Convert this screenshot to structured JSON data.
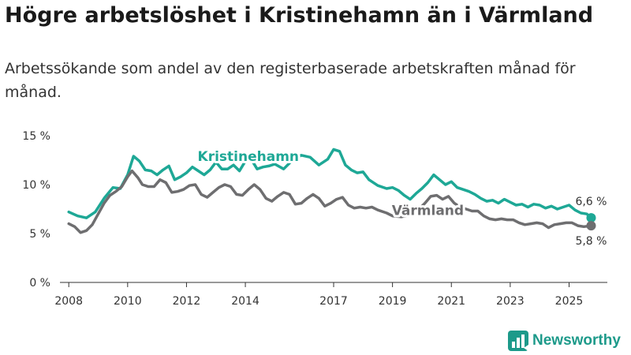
{
  "title": "Högre arbetslöshet i Kristinehamn än i Värmland",
  "subtitle": "Arbetssökande som andel av den registerbaserade arbetskraften månad för månad.",
  "brand": {
    "name": "Newsworthy",
    "icon": "newsworthy-logo-icon",
    "color": "#1d9a8a"
  },
  "chart_data": {
    "type": "line",
    "title": "Högre arbetslöshet i Kristinehamn än i Värmland",
    "xlabel": "",
    "ylabel": "",
    "ylim": [
      0,
      15
    ],
    "xlim": [
      2007.7,
      2026.3
    ],
    "grid": false,
    "y_ticks": [
      0,
      5,
      10,
      15
    ],
    "y_tick_labels": [
      "0 %",
      "5 %",
      "10 %",
      "15 %"
    ],
    "x_ticks": [
      2008,
      2010,
      2012,
      2014,
      2017,
      2019,
      2021,
      2023,
      2025
    ],
    "x_tick_labels": [
      "2008",
      "2010",
      "2012",
      "2014",
      "2017",
      "2019",
      "2021",
      "2023",
      "2025"
    ],
    "series": [
      {
        "name": "Kristinehamn",
        "color": "#1ea896",
        "end_label": "6,6 %",
        "points": [
          [
            2008.0,
            7.2
          ],
          [
            2008.3,
            6.8
          ],
          [
            2008.6,
            6.6
          ],
          [
            2008.9,
            7.2
          ],
          [
            2009.2,
            8.6
          ],
          [
            2009.5,
            9.7
          ],
          [
            2009.75,
            9.6
          ],
          [
            2010.0,
            11.0
          ],
          [
            2010.2,
            12.9
          ],
          [
            2010.4,
            12.4
          ],
          [
            2010.6,
            11.5
          ],
          [
            2010.8,
            11.4
          ],
          [
            2011.0,
            11.0
          ],
          [
            2011.2,
            11.5
          ],
          [
            2011.4,
            11.9
          ],
          [
            2011.6,
            10.5
          ],
          [
            2011.8,
            10.8
          ],
          [
            2012.0,
            11.2
          ],
          [
            2012.2,
            11.8
          ],
          [
            2012.4,
            11.4
          ],
          [
            2012.6,
            11.0
          ],
          [
            2012.8,
            11.5
          ],
          [
            2013.0,
            12.3
          ],
          [
            2013.2,
            11.6
          ],
          [
            2013.4,
            11.6
          ],
          [
            2013.6,
            12.0
          ],
          [
            2013.8,
            11.4
          ],
          [
            2014.0,
            12.4
          ],
          [
            2014.2,
            12.6
          ],
          [
            2014.4,
            11.6
          ],
          [
            2014.6,
            11.8
          ],
          [
            2014.8,
            11.9
          ],
          [
            2015.0,
            12.1
          ],
          [
            2015.3,
            11.6
          ],
          [
            2015.6,
            12.5
          ],
          [
            2015.9,
            13.0
          ],
          [
            2016.2,
            12.8
          ],
          [
            2016.5,
            12.0
          ],
          [
            2016.8,
            12.6
          ],
          [
            2017.0,
            13.6
          ],
          [
            2017.2,
            13.4
          ],
          [
            2017.4,
            12.0
          ],
          [
            2017.6,
            11.5
          ],
          [
            2017.8,
            11.2
          ],
          [
            2018.0,
            11.3
          ],
          [
            2018.2,
            10.5
          ],
          [
            2018.5,
            9.9
          ],
          [
            2018.8,
            9.6
          ],
          [
            2019.0,
            9.7
          ],
          [
            2019.2,
            9.4
          ],
          [
            2019.4,
            8.9
          ],
          [
            2019.6,
            8.5
          ],
          [
            2019.8,
            9.1
          ],
          [
            2020.0,
            9.6
          ],
          [
            2020.2,
            10.2
          ],
          [
            2020.4,
            11.0
          ],
          [
            2020.6,
            10.5
          ],
          [
            2020.8,
            10.0
          ],
          [
            2021.0,
            10.3
          ],
          [
            2021.2,
            9.7
          ],
          [
            2021.4,
            9.5
          ],
          [
            2021.6,
            9.3
          ],
          [
            2021.8,
            9.0
          ],
          [
            2022.0,
            8.6
          ],
          [
            2022.2,
            8.3
          ],
          [
            2022.4,
            8.4
          ],
          [
            2022.6,
            8.1
          ],
          [
            2022.8,
            8.5
          ],
          [
            2023.0,
            8.2
          ],
          [
            2023.2,
            7.9
          ],
          [
            2023.4,
            8.0
          ],
          [
            2023.6,
            7.7
          ],
          [
            2023.8,
            8.0
          ],
          [
            2024.0,
            7.9
          ],
          [
            2024.2,
            7.6
          ],
          [
            2024.4,
            7.8
          ],
          [
            2024.6,
            7.5
          ],
          [
            2024.8,
            7.7
          ],
          [
            2025.0,
            7.9
          ],
          [
            2025.2,
            7.4
          ],
          [
            2025.4,
            7.1
          ],
          [
            2025.6,
            7.0
          ],
          [
            2025.75,
            6.6
          ]
        ]
      },
      {
        "name": "Värmland",
        "color": "#6e6e70",
        "end_label": "5,8 %",
        "points": [
          [
            2008.0,
            6.0
          ],
          [
            2008.2,
            5.7
          ],
          [
            2008.4,
            5.1
          ],
          [
            2008.6,
            5.3
          ],
          [
            2008.8,
            5.9
          ],
          [
            2009.0,
            7.0
          ],
          [
            2009.2,
            8.1
          ],
          [
            2009.4,
            8.9
          ],
          [
            2009.6,
            9.3
          ],
          [
            2009.8,
            9.8
          ],
          [
            2010.0,
            10.8
          ],
          [
            2010.15,
            11.4
          ],
          [
            2010.35,
            10.7
          ],
          [
            2010.5,
            10.0
          ],
          [
            2010.7,
            9.8
          ],
          [
            2010.9,
            9.8
          ],
          [
            2011.1,
            10.5
          ],
          [
            2011.3,
            10.2
          ],
          [
            2011.5,
            9.2
          ],
          [
            2011.7,
            9.3
          ],
          [
            2011.9,
            9.5
          ],
          [
            2012.1,
            9.9
          ],
          [
            2012.3,
            10.0
          ],
          [
            2012.5,
            9.0
          ],
          [
            2012.7,
            8.7
          ],
          [
            2012.9,
            9.2
          ],
          [
            2013.1,
            9.7
          ],
          [
            2013.3,
            10.0
          ],
          [
            2013.5,
            9.8
          ],
          [
            2013.7,
            9.0
          ],
          [
            2013.9,
            8.9
          ],
          [
            2014.1,
            9.5
          ],
          [
            2014.3,
            10.0
          ],
          [
            2014.5,
            9.5
          ],
          [
            2014.7,
            8.6
          ],
          [
            2014.9,
            8.3
          ],
          [
            2015.1,
            8.8
          ],
          [
            2015.3,
            9.2
          ],
          [
            2015.5,
            9.0
          ],
          [
            2015.7,
            8.0
          ],
          [
            2015.9,
            8.1
          ],
          [
            2016.1,
            8.6
          ],
          [
            2016.3,
            9.0
          ],
          [
            2016.5,
            8.6
          ],
          [
            2016.7,
            7.8
          ],
          [
            2016.9,
            8.1
          ],
          [
            2017.1,
            8.5
          ],
          [
            2017.3,
            8.7
          ],
          [
            2017.5,
            7.9
          ],
          [
            2017.7,
            7.6
          ],
          [
            2017.9,
            7.7
          ],
          [
            2018.1,
            7.6
          ],
          [
            2018.3,
            7.7
          ],
          [
            2018.5,
            7.4
          ],
          [
            2018.8,
            7.1
          ],
          [
            2019.0,
            6.8
          ],
          [
            2019.3,
            6.7
          ],
          [
            2019.6,
            6.9
          ],
          [
            2019.9,
            7.5
          ],
          [
            2020.1,
            8.1
          ],
          [
            2020.3,
            8.8
          ],
          [
            2020.5,
            8.9
          ],
          [
            2020.7,
            8.5
          ],
          [
            2020.9,
            8.8
          ],
          [
            2021.1,
            8.1
          ],
          [
            2021.3,
            7.7
          ],
          [
            2021.5,
            7.5
          ],
          [
            2021.7,
            7.3
          ],
          [
            2021.9,
            7.3
          ],
          [
            2022.1,
            6.8
          ],
          [
            2022.3,
            6.5
          ],
          [
            2022.5,
            6.4
          ],
          [
            2022.7,
            6.5
          ],
          [
            2022.9,
            6.4
          ],
          [
            2023.1,
            6.4
          ],
          [
            2023.3,
            6.1
          ],
          [
            2023.5,
            5.9
          ],
          [
            2023.7,
            6.0
          ],
          [
            2023.9,
            6.1
          ],
          [
            2024.1,
            6.0
          ],
          [
            2024.3,
            5.6
          ],
          [
            2024.5,
            5.9
          ],
          [
            2024.7,
            6.0
          ],
          [
            2024.9,
            6.1
          ],
          [
            2025.1,
            6.1
          ],
          [
            2025.3,
            5.8
          ],
          [
            2025.5,
            5.7
          ],
          [
            2025.75,
            5.8
          ]
        ]
      }
    ],
    "series_labels": [
      {
        "text": "Kristinehamn",
        "series": "Kristinehamn",
        "at": [
          2014.1,
          12.4
        ]
      },
      {
        "text": "Värmland",
        "series": "Värmland",
        "at": [
          2020.2,
          6.9
        ]
      }
    ]
  }
}
